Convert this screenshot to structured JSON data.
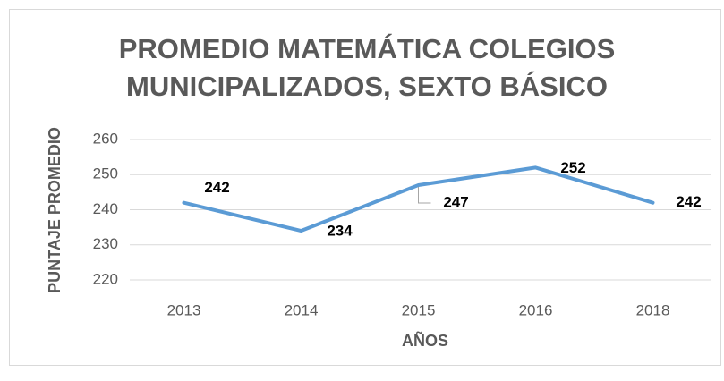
{
  "chart_data": {
    "type": "line",
    "title": "PROMEDIO MATEMÁTICA COLEGIOS MUNICIPALIZADOS, SEXTO BÁSICO",
    "xlabel": "AÑOS",
    "ylabel": "PUNTAJE PROMEDIO",
    "categories": [
      "2013",
      "2014",
      "2015",
      "2016",
      "2018"
    ],
    "values": [
      242,
      234,
      247,
      252,
      242
    ],
    "color": "#5b9bd5",
    "ylim": [
      220,
      260
    ],
    "yticks": [
      220,
      230,
      240,
      250,
      260
    ],
    "grid": true
  }
}
